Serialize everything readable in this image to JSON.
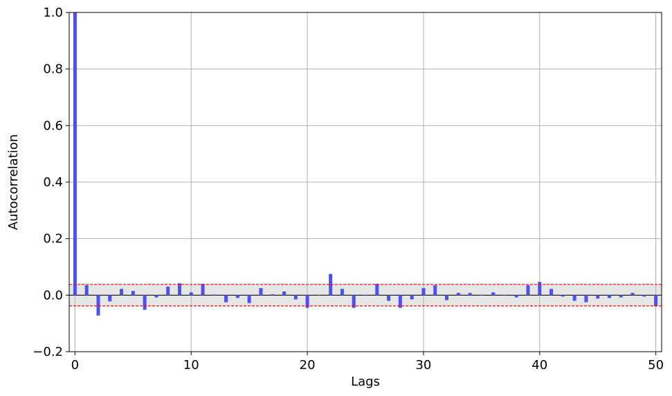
{
  "chart_data": {
    "type": "bar",
    "title": "",
    "xlabel": "Lags",
    "ylabel": "Autocorrelation",
    "xlim": [
      -0.5,
      50.5
    ],
    "ylim": [
      -0.2,
      1.0
    ],
    "x_ticks": [
      0,
      10,
      20,
      30,
      40,
      50
    ],
    "y_ticks": [
      -0.2,
      0.0,
      0.2,
      0.4,
      0.6,
      0.8,
      1.0
    ],
    "x_tick_labels": [
      "0",
      "10",
      "20",
      "30",
      "40",
      "50"
    ],
    "y_tick_labels": [
      "−0.2",
      "0.0",
      "0.2",
      "0.4",
      "0.6",
      "0.8",
      "1.0"
    ],
    "grid": true,
    "confidence_band": [
      -0.038,
      0.038
    ],
    "colors": {
      "bar": "#5050ee",
      "confidence_line": "#ff0000",
      "confidence_fill": "#e6e6e6",
      "grid": "#b0b0b0"
    },
    "lags": [
      0,
      1,
      2,
      3,
      4,
      5,
      6,
      7,
      8,
      9,
      10,
      11,
      12,
      13,
      14,
      15,
      16,
      17,
      18,
      19,
      20,
      21,
      22,
      23,
      24,
      25,
      26,
      27,
      28,
      29,
      30,
      31,
      32,
      33,
      34,
      35,
      36,
      37,
      38,
      39,
      40,
      41,
      42,
      43,
      44,
      45,
      46,
      47,
      48,
      49,
      50
    ],
    "values": [
      1.0,
      0.035,
      -0.072,
      -0.022,
      0.022,
      0.015,
      -0.052,
      -0.008,
      0.03,
      0.042,
      0.01,
      0.04,
      0.002,
      -0.025,
      -0.01,
      -0.028,
      0.025,
      0.003,
      0.013,
      -0.015,
      -0.045,
      -0.002,
      0.075,
      0.022,
      -0.045,
      -0.002,
      0.04,
      -0.02,
      -0.045,
      -0.015,
      0.025,
      0.035,
      -0.018,
      0.008,
      0.008,
      0.0,
      0.01,
      0.0,
      -0.008,
      0.035,
      0.047,
      0.022,
      -0.005,
      -0.02,
      -0.025,
      -0.012,
      -0.01,
      -0.008,
      0.008,
      -0.005,
      -0.04
    ]
  }
}
